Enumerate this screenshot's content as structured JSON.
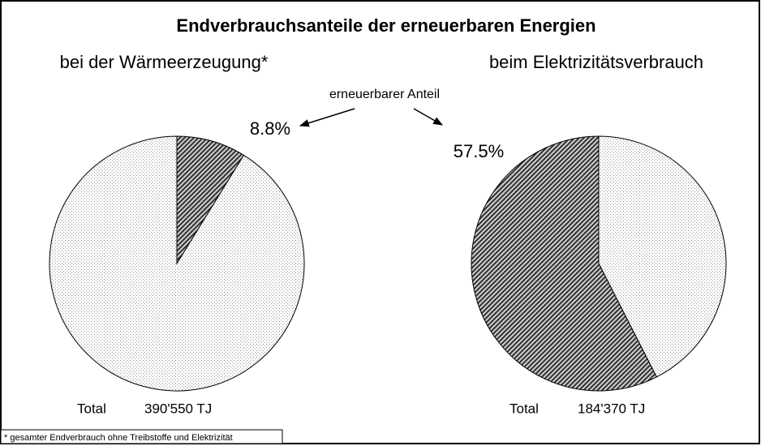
{
  "header": {
    "title": "Endverbrauchsanteile der erneuerbaren Energien"
  },
  "annotation": "erneuerbarer Anteil",
  "footnote": "* gesamter Endverbrauch ohne Treibstoffe und Elektrizität",
  "chart_data": [
    {
      "type": "pie",
      "title": "bei der Wärmeerzeugung*",
      "values": [
        8.8,
        91.2
      ],
      "value_labels": [
        "8.8%",
        null
      ],
      "colors": [
        "#7a7a7a",
        "#e6e6e6"
      ],
      "total_label": "Total",
      "total": {
        "value": 390550,
        "label": "390'550 TJ"
      }
    },
    {
      "type": "pie",
      "title": "beim Elektrizitätsverbrauch",
      "values": [
        42.5,
        57.5
      ],
      "value_labels": [
        null,
        "57.5%"
      ],
      "colors": [
        "#e6e6e6",
        "#7a7a7a"
      ],
      "total_label": "Total",
      "total": {
        "value": 184370,
        "label": "184'370 TJ"
      }
    }
  ]
}
